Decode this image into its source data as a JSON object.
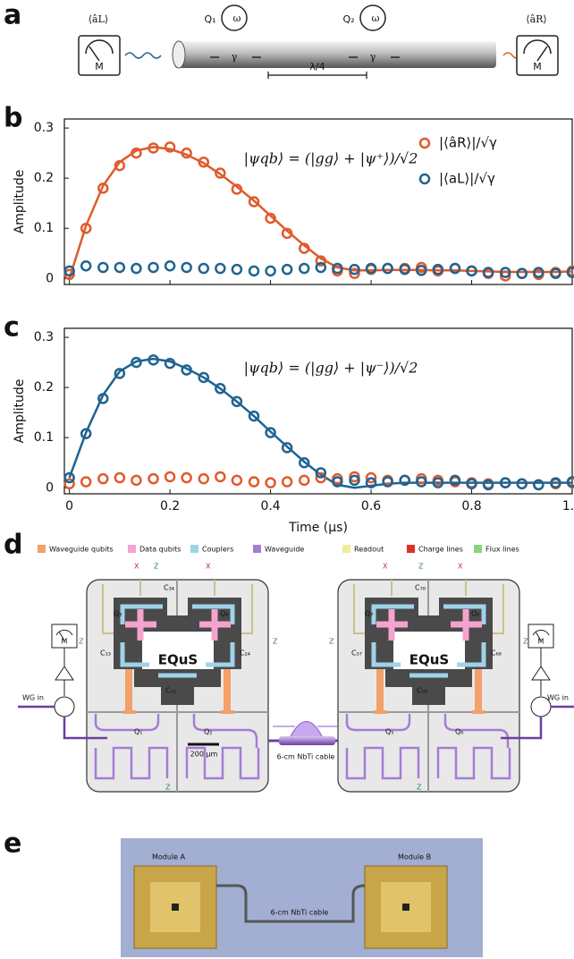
{
  "panel_labels": [
    "a",
    "b",
    "c",
    "d",
    "e"
  ],
  "panel_a": {
    "left_expectation": "⟨âL⟩",
    "right_expectation": "⟨âR⟩",
    "meter": "M",
    "qubit_1": "Q₁",
    "qubit_2": "Q₂",
    "frequency": "ω",
    "decay": "γ",
    "spacing": "λ/4"
  },
  "chart_data": [
    {
      "type": "scatter",
      "ylabel": "Amplitude",
      "annotation": "|ψqb⟩ = (|gg⟩ + |ψ⁺⟩)/√2",
      "x": [
        0,
        0.033,
        0.067,
        0.1,
        0.133,
        0.167,
        0.2,
        0.233,
        0.267,
        0.3,
        0.333,
        0.367,
        0.4,
        0.433,
        0.467,
        0.5,
        0.533,
        0.567,
        0.6,
        0.633,
        0.667,
        0.7,
        0.733,
        0.767,
        0.8,
        0.833,
        0.867,
        0.9,
        0.933,
        0.967,
        1.0
      ],
      "series": [
        {
          "style": "line",
          "color": "#e05a2b",
          "values": [
            0.0,
            0.105,
            0.185,
            0.232,
            0.255,
            0.262,
            0.258,
            0.247,
            0.23,
            0.208,
            0.183,
            0.155,
            0.125,
            0.095,
            0.066,
            0.04,
            0.022,
            0.016,
            0.016,
            0.017,
            0.017,
            0.017,
            0.016,
            0.016,
            0.015,
            0.014,
            0.013,
            0.013,
            0.013,
            0.013,
            0.014
          ]
        },
        {
          "name": "|⟨âR⟩|/√γ",
          "style": "markers",
          "color": "#e05a2b",
          "values": [
            0.008,
            0.1,
            0.18,
            0.225,
            0.25,
            0.26,
            0.262,
            0.25,
            0.232,
            0.21,
            0.178,
            0.153,
            0.12,
            0.09,
            0.06,
            0.035,
            0.015,
            0.01,
            0.018,
            0.02,
            0.02,
            0.022,
            0.015,
            0.02,
            0.015,
            0.01,
            0.005,
            0.01,
            0.008,
            0.012,
            0.015
          ]
        },
        {
          "name": "|⟨aL⟩|/√γ",
          "style": "markers",
          "color": "#1f6391",
          "values": [
            0.015,
            0.025,
            0.022,
            0.022,
            0.02,
            0.022,
            0.025,
            0.022,
            0.02,
            0.02,
            0.018,
            0.015,
            0.015,
            0.018,
            0.02,
            0.022,
            0.02,
            0.018,
            0.02,
            0.02,
            0.018,
            0.016,
            0.018,
            0.02,
            0.015,
            0.012,
            0.012,
            0.01,
            0.012,
            0.01,
            0.012
          ]
        }
      ],
      "legend": "upper right",
      "xlim": [
        -0.01,
        1.0
      ],
      "xticks": [
        0,
        0.2,
        0.4,
        0.6,
        0.8,
        1.0
      ],
      "xtick_labels": false,
      "ylim": [
        -0.012,
        0.318
      ],
      "yticks": [
        0,
        0.1,
        0.2,
        0.3
      ]
    },
    {
      "type": "scatter",
      "ylabel": "Amplitude",
      "xlabel": "Time (µs)",
      "annotation": "|ψqb⟩ = (|gg⟩ + |ψ⁻⟩)/√2",
      "x": [
        0,
        0.033,
        0.067,
        0.1,
        0.133,
        0.167,
        0.2,
        0.233,
        0.267,
        0.3,
        0.333,
        0.367,
        0.4,
        0.433,
        0.467,
        0.5,
        0.533,
        0.567,
        0.6,
        0.633,
        0.667,
        0.7,
        0.733,
        0.767,
        0.8,
        0.833,
        0.867,
        0.9,
        0.933,
        0.967,
        1.0
      ],
      "series": [
        {
          "style": "line",
          "color": "#1f6391",
          "values": [
            0.02,
            0.11,
            0.185,
            0.232,
            0.252,
            0.257,
            0.252,
            0.238,
            0.22,
            0.198,
            0.172,
            0.143,
            0.112,
            0.082,
            0.052,
            0.026,
            0.006,
            0.0,
            0.004,
            0.008,
            0.01,
            0.01,
            0.01,
            0.01,
            0.01,
            0.01,
            0.01,
            0.01,
            0.01,
            0.01,
            0.01
          ]
        },
        {
          "style": "markers",
          "color": "#e05a2b",
          "values": [
            0.008,
            0.012,
            0.018,
            0.02,
            0.015,
            0.018,
            0.022,
            0.02,
            0.018,
            0.022,
            0.015,
            0.012,
            0.01,
            0.012,
            0.015,
            0.02,
            0.018,
            0.022,
            0.02,
            0.015,
            0.015,
            0.018,
            0.015,
            0.012,
            0.01,
            0.008,
            0.01,
            0.008,
            0.006,
            0.008,
            0.01
          ]
        },
        {
          "style": "markers",
          "color": "#1f6391",
          "values": [
            0.02,
            0.108,
            0.178,
            0.228,
            0.25,
            0.255,
            0.248,
            0.235,
            0.22,
            0.198,
            0.172,
            0.143,
            0.11,
            0.08,
            0.05,
            0.03,
            0.012,
            0.015,
            0.01,
            0.012,
            0.015,
            0.012,
            0.01,
            0.015,
            0.008,
            0.006,
            0.01,
            0.008,
            0.006,
            0.01,
            0.012
          ]
        }
      ],
      "xlim": [
        -0.01,
        1.0
      ],
      "xticks": [
        0,
        0.2,
        0.4,
        0.6,
        0.8,
        {
          "value": 1,
          "label": "1.0"
        }
      ],
      "xtick_labels": true,
      "ylim": [
        -0.012,
        0.318
      ],
      "yticks": [
        0,
        0.1,
        0.2,
        0.3
      ]
    }
  ],
  "panel_d": {
    "legend": [
      {
        "label": "Waveguide qubits",
        "color": "#f4a06a"
      },
      {
        "label": "Data qubits",
        "color": "#f4a3cf"
      },
      {
        "label": "Couplers",
        "color": "#9fd3ea"
      },
      {
        "label": "Waveguide",
        "color": "#a57cd6"
      },
      {
        "label": "Readout",
        "color": "#f3ea9e"
      },
      {
        "label": "Charge lines",
        "color": "#e0302a"
      },
      {
        "label": "Flux lines",
        "color": "#8fd17e"
      }
    ],
    "meter": "M",
    "input": "WG in",
    "charge": "X",
    "flux": "Z",
    "module_1": {
      "q_top_left": "Q₃",
      "c_top": "C₃₄",
      "q_top_right": "Q₄",
      "c_left": "C₁₃",
      "c_right": "C₂₄",
      "logo": "EQuS",
      "c_bottom": "C₁₂",
      "q_bottom_left": "Q₁",
      "q_bottom_right": "Q₂"
    },
    "module_2": {
      "q_top_left": "Q₇",
      "c_top": "C₇₈",
      "q_top_right": "Q₈",
      "c_left": "C₅₇",
      "c_right": "C₆₈",
      "logo": "EQuS",
      "c_bottom": "C₅₆",
      "q_bottom_left": "Q₅",
      "q_bottom_right": "Q₆"
    },
    "scale": "200 µm",
    "cable": "6-cm NbTi cable"
  },
  "panel_e": {
    "module_a": "Module A",
    "module_b": "Module B",
    "cable": "6-cm NbTi cable"
  }
}
